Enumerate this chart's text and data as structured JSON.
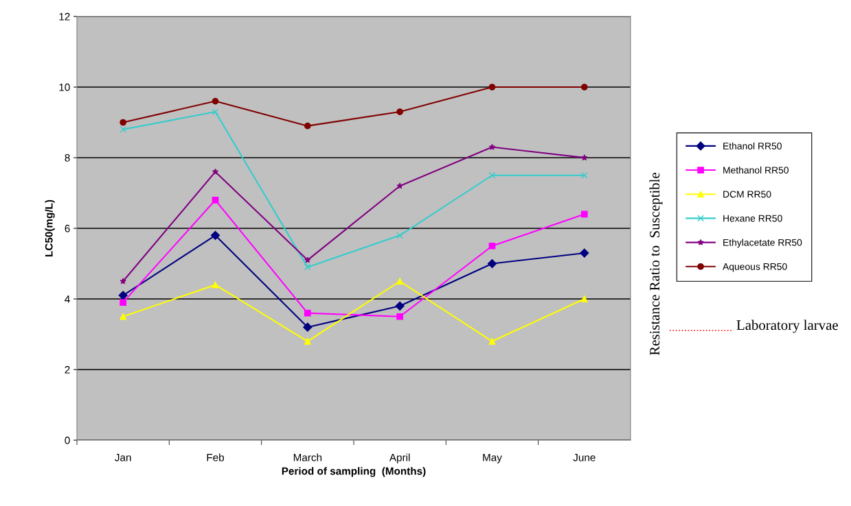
{
  "chart_data": {
    "type": "line",
    "xlabel": "Period of sampling  (Months)",
    "ylabel": "LC50(mg/L)",
    "categories": [
      "Jan",
      "Feb",
      "March",
      "April",
      "May",
      "June"
    ],
    "series": [
      {
        "name": "Ethanol RR50",
        "color": "#000080",
        "marker": "diamond",
        "values": [
          4.1,
          5.8,
          3.2,
          3.8,
          5.0,
          5.3
        ]
      },
      {
        "name": "Methanol RR50",
        "color": "#ff00ff",
        "marker": "square",
        "values": [
          3.9,
          6.8,
          3.6,
          3.5,
          5.5,
          6.4
        ]
      },
      {
        "name": "DCM RR50",
        "color": "#ffff00",
        "marker": "triangle",
        "values": [
          3.5,
          4.4,
          2.8,
          4.5,
          2.8,
          4.0
        ]
      },
      {
        "name": "Hexane RR50",
        "color": "#33cccc",
        "marker": "cross",
        "values": [
          8.8,
          9.3,
          4.9,
          5.8,
          7.5,
          7.5
        ]
      },
      {
        "name": "Ethylacetate RR50",
        "color": "#800080",
        "marker": "star",
        "values": [
          4.5,
          7.6,
          5.1,
          7.2,
          8.3,
          8.0
        ]
      },
      {
        "name": "Aqueous RR50",
        "color": "#800000",
        "marker": "circle",
        "values": [
          9.0,
          9.6,
          8.9,
          9.3,
          10.0,
          10.0
        ]
      }
    ],
    "ylim": [
      0,
      12
    ],
    "yticks": [
      0,
      2,
      4,
      6,
      8,
      10,
      12
    ],
    "grid": "y",
    "legend": "right",
    "annotations": [
      "Resistance Ratio to  Susceptible",
      "Laboratory larvae"
    ]
  }
}
